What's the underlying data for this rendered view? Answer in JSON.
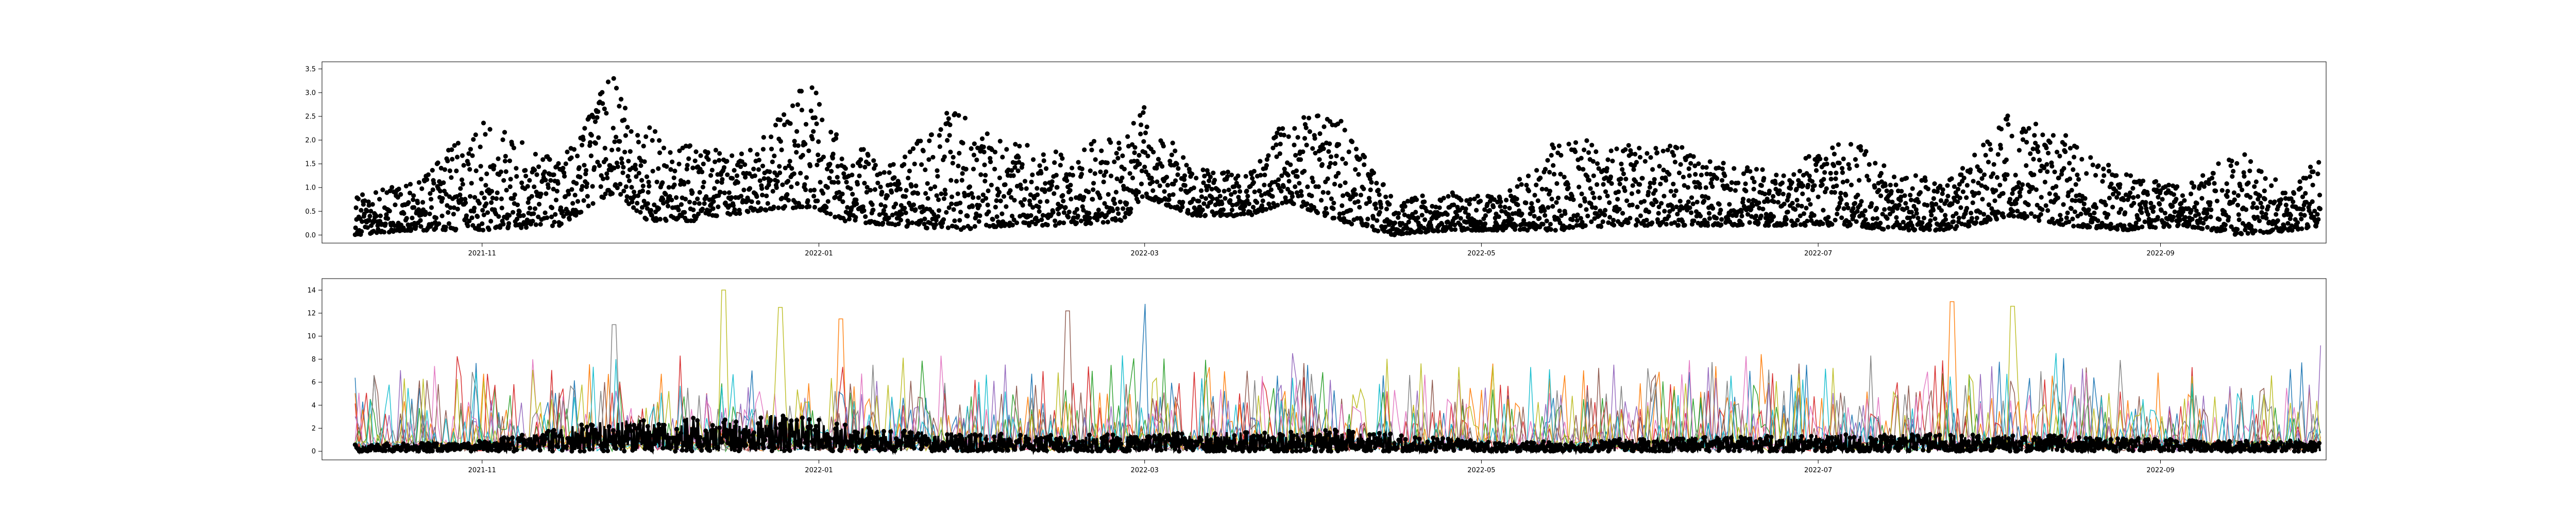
{
  "chart_data": [
    {
      "type": "scatter",
      "title": "",
      "xlabel": "",
      "ylabel": "",
      "x_range": [
        "2021-10-03",
        "2022-10-01"
      ],
      "ylim": [
        -0.17,
        3.65
      ],
      "yticks": [
        0.0,
        0.5,
        1.0,
        1.5,
        2.0,
        2.5,
        3.0,
        3.5
      ],
      "ytick_labels": [
        "0.0",
        "0.5",
        "1.0",
        "1.5",
        "2.0",
        "2.5",
        "3.0",
        "3.5"
      ],
      "xticks": [
        "2021-11-01",
        "2022-01-01",
        "2022-03-01",
        "2022-05-01",
        "2022-07-01",
        "2022-09-01"
      ],
      "xtick_labels": [
        "2021-11",
        "2022-01",
        "2022-03",
        "2022-05",
        "2022-07",
        "2022-09"
      ],
      "grid": false,
      "legend": "none",
      "series": [
        {
          "color": "#000000",
          "marker": "circle",
          "envelope": {
            "x": [
              "2021-10-09",
              "2021-10-20",
              "2021-11-01",
              "2021-11-15",
              "2021-11-25",
              "2021-12-01",
              "2021-12-10",
              "2021-12-20",
              "2021-12-31",
              "2022-01-05",
              "2022-01-15",
              "2022-01-25",
              "2022-02-05",
              "2022-02-15",
              "2022-02-25",
              "2022-03-01",
              "2022-03-10",
              "2022-03-20",
              "2022-03-27",
              "2022-04-05",
              "2022-04-15",
              "2022-04-25",
              "2022-05-05",
              "2022-05-15",
              "2022-05-25",
              "2022-06-05",
              "2022-06-15",
              "2022-06-25",
              "2022-07-05",
              "2022-07-15",
              "2022-07-25",
              "2022-08-05",
              "2022-08-15",
              "2022-08-25",
              "2022-09-05",
              "2022-09-15",
              "2022-09-25",
              "2022-09-30"
            ],
            "low": [
              0.0,
              0.1,
              0.1,
              0.2,
              0.9,
              0.3,
              0.3,
              0.5,
              0.6,
              0.3,
              0.2,
              0.1,
              0.2,
              0.2,
              0.3,
              0.8,
              0.4,
              0.4,
              0.7,
              0.3,
              0.0,
              0.1,
              0.1,
              0.1,
              0.2,
              0.2,
              0.2,
              0.2,
              0.2,
              0.1,
              0.1,
              0.4,
              0.2,
              0.1,
              0.2,
              0.0,
              0.1,
              0.2
            ],
            "high": [
              0.9,
              1.1,
              2.5,
              1.5,
              3.5,
              2.4,
              1.8,
              1.8,
              3.4,
              2.0,
              1.6,
              2.7,
              2.0,
              1.8,
              2.2,
              2.8,
              1.4,
              1.3,
              2.6,
              2.5,
              0.8,
              0.9,
              0.8,
              2.1,
              1.9,
              1.9,
              1.5,
              1.3,
              2.2,
              1.3,
              1.2,
              2.6,
              2.1,
              1.3,
              1.0,
              1.8,
              1.0,
              1.7
            ]
          }
        }
      ]
    },
    {
      "type": "line",
      "title": "",
      "xlabel": "",
      "ylabel": "",
      "x_range": [
        "2021-10-03",
        "2022-10-01"
      ],
      "ylim": [
        -0.75,
        15.0
      ],
      "yticks": [
        0,
        2,
        4,
        6,
        8,
        10,
        12,
        14
      ],
      "ytick_labels": [
        "0",
        "2",
        "4",
        "6",
        "8",
        "10",
        "12",
        "14"
      ],
      "xticks": [
        "2021-11-01",
        "2022-01-01",
        "2022-03-01",
        "2022-05-01",
        "2022-07-01",
        "2022-09-01"
      ],
      "xtick_labels": [
        "2021-11",
        "2022-01",
        "2022-03",
        "2022-05",
        "2022-07",
        "2022-09"
      ],
      "grid": false,
      "legend": "none",
      "colors": [
        "#1f77b4",
        "#ff7f0e",
        "#2ca02c",
        "#d62728",
        "#9467bd",
        "#8c564b",
        "#e377c2",
        "#7f7f7f",
        "#bcbd22",
        "#17becf"
      ],
      "spike_peaks": [
        {
          "x": "2021-11-25",
          "y": 11.0
        },
        {
          "x": "2021-12-15",
          "y": 14.0
        },
        {
          "x": "2021-12-25",
          "y": 12.5
        },
        {
          "x": "2022-01-05",
          "y": 11.5
        },
        {
          "x": "2022-02-15",
          "y": 12.2
        },
        {
          "x": "2022-03-01",
          "y": 12.8
        },
        {
          "x": "2022-07-25",
          "y": 13.0
        },
        {
          "x": "2022-08-05",
          "y": 12.6
        },
        {
          "x": "2022-09-30",
          "y": 9.2
        }
      ],
      "black_series_envelope": {
        "x": [
          "2021-10-09",
          "2021-11-01",
          "2021-11-25",
          "2021-12-25",
          "2022-01-15",
          "2022-02-15",
          "2022-03-10",
          "2022-04-05",
          "2022-05-05",
          "2022-06-05",
          "2022-07-05",
          "2022-08-05",
          "2022-09-05",
          "2022-09-30"
        ],
        "high": [
          0.6,
          0.9,
          2.8,
          3.2,
          1.8,
          1.4,
          1.6,
          1.9,
          0.7,
          1.3,
          1.5,
          1.5,
          1.0,
          0.9
        ]
      }
    }
  ]
}
